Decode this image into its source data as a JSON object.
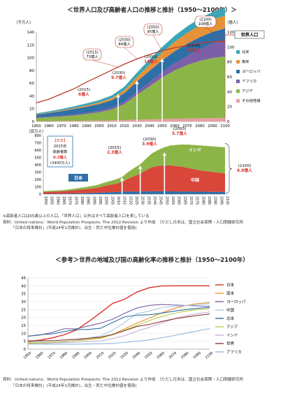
{
  "titles": {
    "main": "＜世界人口及び高齢者人口の推移と推計（1950〜2100年）＞",
    "ref": "＜参考＞世界の地域及び国の高齢化率の推移と推計（1950〜2100年）"
  },
  "notes": {
    "note1": "※高齢者人口は65歳以上の人口。「世界人口」以外はすべて高齢者人口を表している",
    "source1a": "資料：United nations：World Population Prospects: The 2012 Revision より作成　（ただし日本は、国立社会保障・人口問題研究所",
    "source1b": "「日本の将来推計」(平成24年1月推計)、出生・死亡中位推計値を使用)",
    "source2a": "資料：United nations：World Population Prospects: The 2012 Revision より作成　（ただし日本は、国立社会保障・人口問題研究所",
    "source2b": "「日本の将来推計」(平成24年1月推計)、出生・死亡中位推計値を使用)"
  },
  "chart_data": [
    {
      "type": "area",
      "ylabel_left": "（千万人）",
      "ylabel_right": "（億人）",
      "ylim_left": [
        0,
        140
      ],
      "ylim_right": [
        0,
        120
      ],
      "yticks_left": [
        0,
        20,
        40,
        60,
        80,
        100,
        120,
        140
      ],
      "yticks_right": [
        0,
        20,
        40,
        60,
        80,
        100,
        120
      ],
      "x": [
        1950,
        1960,
        1970,
        1980,
        1990,
        2000,
        2010,
        2020,
        2030,
        2040,
        2050,
        2060,
        2070,
        2080,
        2090,
        2100
      ],
      "series": [
        {
          "name": "その他地域",
          "color": "#e8a0a0",
          "values": [
            0.5,
            0.6,
            0.8,
            1,
            1.2,
            1.5,
            1.8,
            2.2,
            2.8,
            3.3,
            3.8,
            4.2,
            4.6,
            5,
            5.4,
            5.8
          ]
        },
        {
          "name": "アジア",
          "color": "#8cb548",
          "values": [
            5,
            6,
            7,
            8.5,
            10.5,
            13,
            17,
            25,
            39,
            52,
            65,
            76,
            84,
            90,
            94,
            96
          ]
        },
        {
          "name": "アフリカ",
          "color": "#7b5fa8",
          "values": [
            1,
            1.2,
            1.4,
            1.6,
            1.9,
            2.3,
            2.9,
            3.7,
            4.8,
            6.3,
            8.3,
            11,
            14.5,
            18.5,
            22.5,
            26
          ]
        },
        {
          "name": "ヨーロッパ",
          "color": "#2e6fa8",
          "values": [
            4.2,
            5.5,
            7,
            8.5,
            9.5,
            10.5,
            11.6,
            13.5,
            16,
            17.8,
            18.6,
            18.8,
            18.8,
            18.6,
            18.4,
            18.1
          ]
        },
        {
          "name": "南米",
          "color": "#e69238",
          "values": [
            0.6,
            0.8,
            1.1,
            1.5,
            2,
            2.6,
            3.4,
            4.7,
            7,
            9.8,
            12.5,
            15,
            17,
            18.5,
            19.5,
            20
          ]
        },
        {
          "name": "北米",
          "color": "#3aa6b8",
          "values": [
            1.4,
            1.8,
            2.2,
            2.7,
            3.3,
            3.7,
            4.2,
            5.4,
            7,
            8,
            8.6,
            9.4,
            10.2,
            11,
            11.6,
            12
          ]
        }
      ],
      "world_population": {
        "name": "世界人口",
        "color": "#c0392b",
        "values": [
          25,
          30,
          37,
          44,
          53,
          61,
          69,
          77,
          84,
          90,
          95,
          99,
          102,
          105,
          107,
          108
        ]
      },
      "annotations": [
        {
          "year": "(2015)",
          "text": "73億人"
        },
        {
          "year": "(2030)",
          "text": "84億人"
        },
        {
          "year": "(2050)",
          "text": "95億人"
        },
        {
          "year": "(2100)",
          "text": "108億人"
        },
        {
          "year": "(2015)",
          "text": "6億人"
        },
        {
          "year": "(2030)",
          "text": "9.7億人"
        },
        {
          "year": "(2050)",
          "text": "14億人"
        },
        {
          "year": "(2100)",
          "text": "23億人"
        }
      ],
      "legend_label": "世界人口"
    },
    {
      "type": "area",
      "ylabel": "（百万人）",
      "ylim": [
        0,
        800
      ],
      "yticks": [
        0,
        100,
        200,
        300,
        400,
        500,
        600,
        700,
        800
      ],
      "x": [
        1950,
        1955,
        1960,
        1965,
        1970,
        1975,
        1980,
        1985,
        1990,
        1995,
        2000,
        2005,
        2010,
        2015,
        2020,
        2025,
        2030,
        2035,
        2040,
        2045,
        2050,
        2055,
        2060,
        2065,
        2070,
        2075,
        2080,
        2085,
        2090,
        2095,
        2100
      ],
      "series": [
        {
          "name": "日本",
          "color": "#2e6fa8",
          "values": [
            4,
            5,
            5,
            6,
            7,
            9,
            11,
            12,
            15,
            18,
            22,
            26,
            29,
            34,
            36,
            36,
            37,
            37,
            39,
            39,
            39,
            38,
            37,
            36,
            35,
            34,
            33,
            32,
            31,
            30,
            29
          ]
        },
        {
          "name": "中国",
          "color": "#d9473a",
          "values": [
            25,
            27,
            30,
            32,
            36,
            42,
            48,
            55,
            62,
            70,
            88,
            100,
            112,
            132,
            175,
            210,
            240,
            290,
            330,
            345,
            350,
            355,
            345,
            335,
            320,
            305,
            290,
            280,
            270,
            262,
            254
          ]
        },
        {
          "name": "インド",
          "color": "#8cb548",
          "values": [
            12,
            13,
            14,
            16,
            19,
            22,
            26,
            30,
            34,
            39,
            45,
            52,
            60,
            67,
            90,
            110,
            130,
            160,
            190,
            220,
            250,
            270,
            290,
            305,
            320,
            330,
            340,
            345,
            350,
            352,
            355
          ]
        }
      ],
      "series_labels": {
        "japan": "日本",
        "china": "中国",
        "india": "インド"
      },
      "japan_box": [
        "【日本】",
        "2015年",
        "高齢者数",
        "0.3億人",
        "(3400万人)"
      ],
      "annotations": [
        {
          "year": "(2015)",
          "text": "2.3億人"
        },
        {
          "year": "(2030)",
          "text": "3.9億人"
        },
        {
          "year": "(2050)",
          "text": "5.7億人"
        },
        {
          "year": "(2100)",
          "text": "6.9億人"
        }
      ]
    },
    {
      "type": "line",
      "ylim": [
        0,
        45
      ],
      "yticks": [
        0,
        5,
        10,
        15,
        20,
        25,
        30,
        35,
        40,
        45
      ],
      "x": [
        1950,
        1960,
        1970,
        1980,
        1990,
        2000,
        2010,
        2020,
        2030,
        2040,
        2050,
        2060,
        2070,
        2080,
        2090,
        2100
      ],
      "series": [
        {
          "name": "日本",
          "color": "#d9302a",
          "values": [
            4.9,
            5.7,
            7.1,
            9.1,
            12.1,
            17.4,
            23,
            28.9,
            31.6,
            36.1,
            38.8,
            39.9,
            40,
            40,
            40,
            40
          ]
        },
        {
          "name": "南米",
          "color": "#e69238",
          "values": [
            3.7,
            3.9,
            4.3,
            4.9,
            5.5,
            6.2,
            7.2,
            9.2,
            12.9,
            16.5,
            19.5,
            22.8,
            25.5,
            27.5,
            28.8,
            29.4
          ]
        },
        {
          "name": "ヨーロッパ",
          "color": "#7b5fa8",
          "values": [
            8.2,
            8.9,
            10.5,
            12.9,
            12.8,
            14.7,
            16.4,
            18.9,
            22.7,
            26,
            27.6,
            28.2,
            27.9,
            27.6,
            27.3,
            27
          ]
        },
        {
          "name": "中国",
          "color": "#a9cbe0",
          "values": [
            4.5,
            4.6,
            4,
            4.6,
            5.6,
            7,
            8.4,
            12,
            16.9,
            22.5,
            23.9,
            26.2,
            27,
            27.5,
            28,
            28.7
          ]
        },
        {
          "name": "北米",
          "color": "#2f6f9f",
          "values": [
            8.2,
            9.1,
            9.6,
            11.1,
            12.4,
            12.4,
            13.2,
            16.9,
            20.4,
            21.5,
            21.7,
            22.7,
            23.9,
            25,
            25.8,
            26.4
          ]
        },
        {
          "name": "アジア",
          "color": "#b8cc4a",
          "values": [
            4.1,
            4,
            4.4,
            4.8,
            5.2,
            6,
            6.8,
            9,
            12.1,
            15,
            18,
            20.5,
            22.5,
            24,
            25,
            25.5
          ]
        },
        {
          "name": "インド",
          "color": "#c8aed8",
          "values": [
            3.1,
            3.3,
            3.9,
            4.1,
            4.3,
            4.8,
            5.1,
            6.7,
            8.5,
            11.4,
            13.7,
            16.5,
            19,
            21,
            22.5,
            23.5
          ]
        },
        {
          "name": "世界",
          "color": "#8b3a3a",
          "values": [
            5.2,
            5.3,
            5.3,
            5.8,
            6.2,
            6.9,
            7.6,
            9.3,
            11.7,
            14.3,
            15.6,
            17.4,
            19,
            20.2,
            21.3,
            22.2
          ]
        },
        {
          "name": "アフリカ",
          "color": "#8fb8e0",
          "values": [
            3.2,
            3.2,
            3.1,
            3.1,
            3.1,
            3.3,
            3.4,
            3.6,
            4.3,
            5,
            5.8,
            7.1,
            8.5,
            10,
            11.5,
            13
          ]
        }
      ]
    }
  ]
}
